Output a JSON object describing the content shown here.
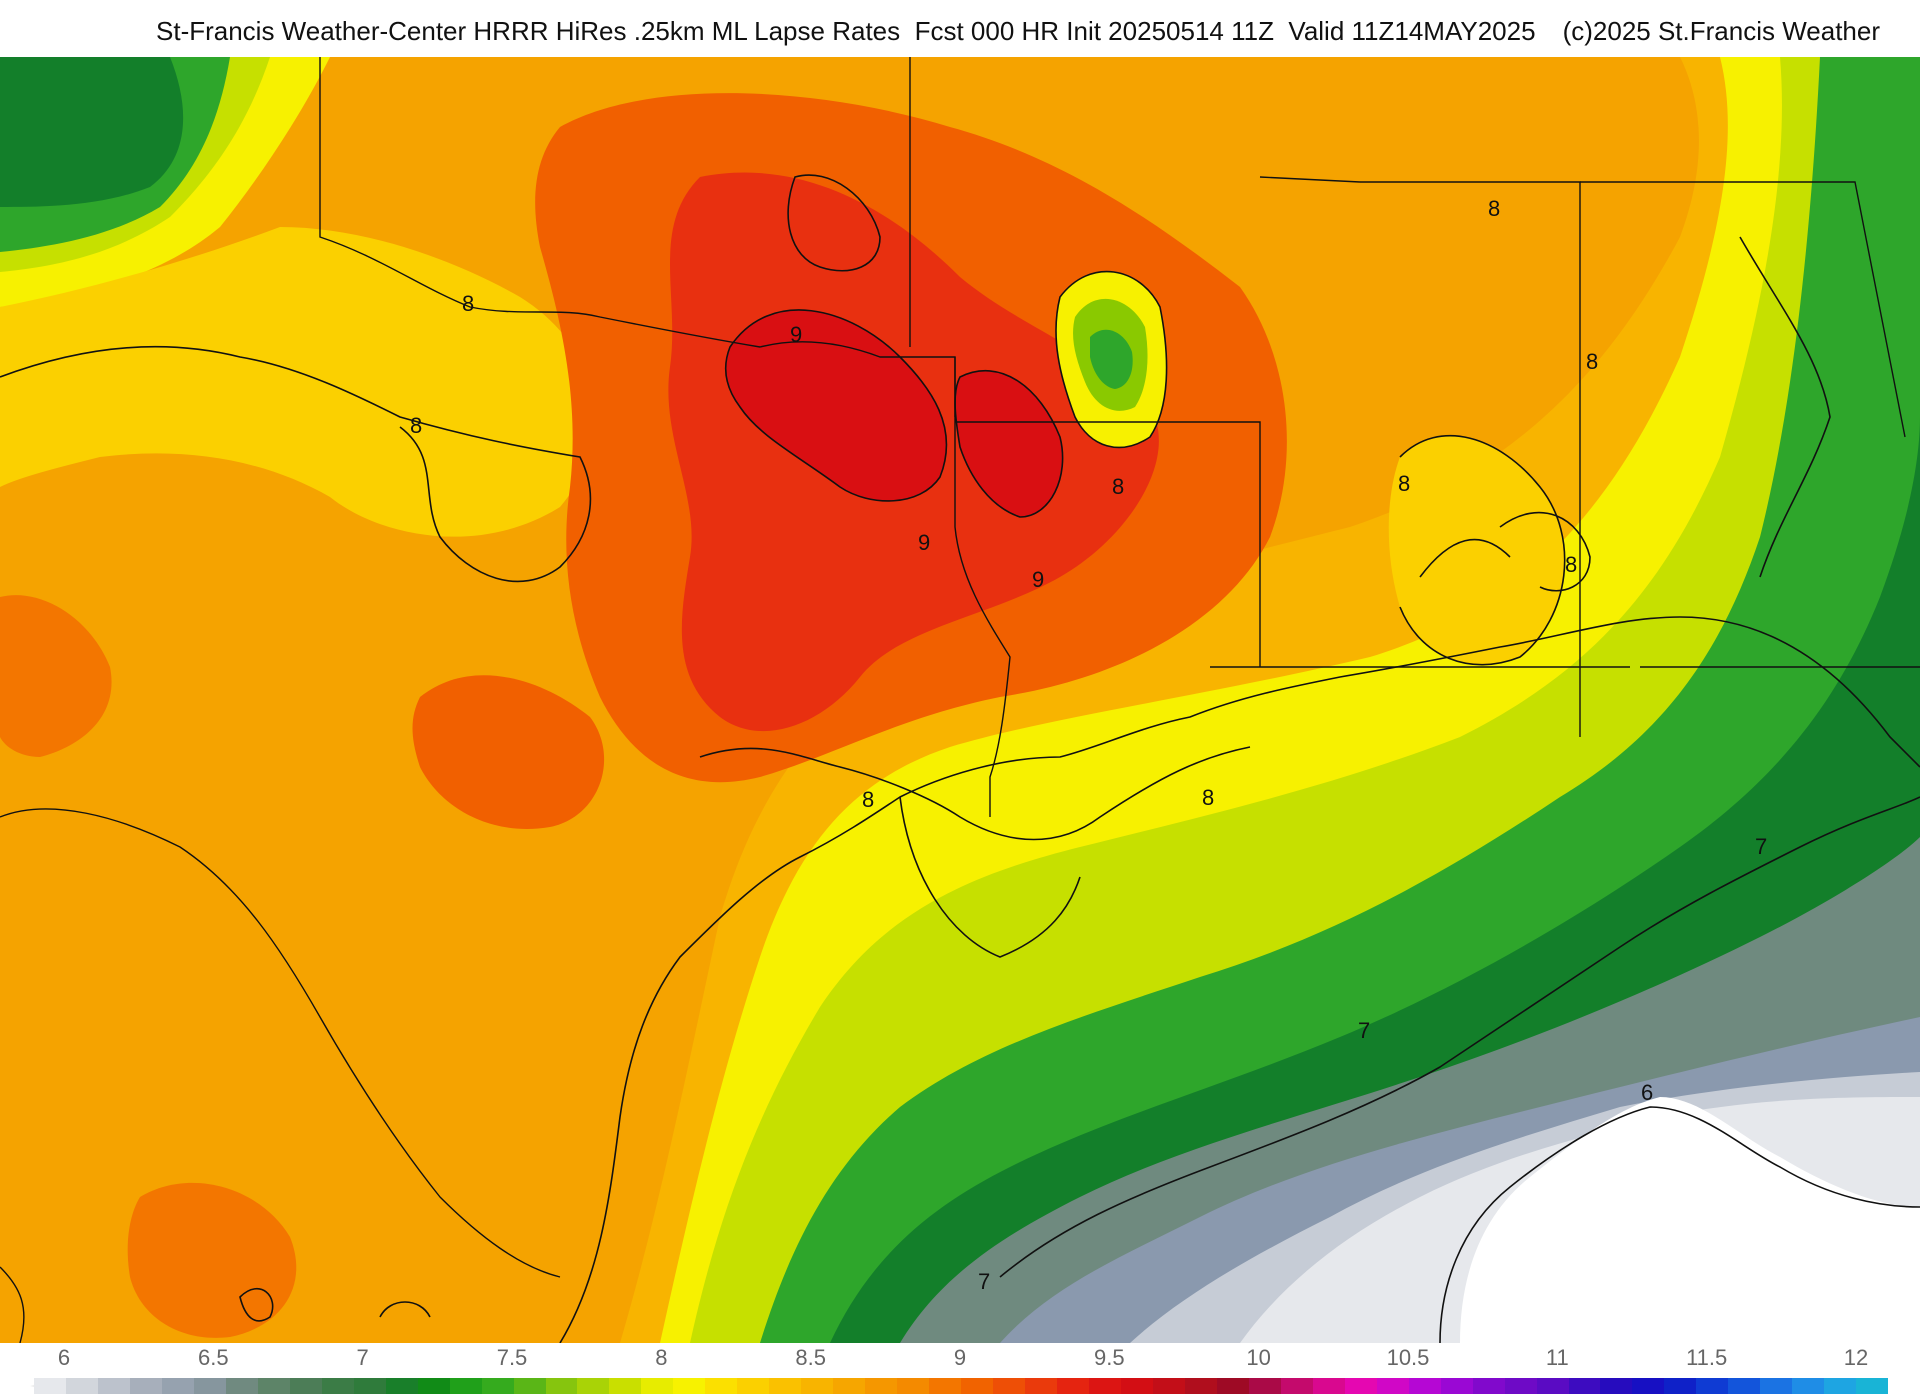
{
  "header": {
    "title": "St-Francis Weather-Center HRRR HiRes .25km ML Lapse Rates  Fcst 000 HR Init 20250514 11Z  Valid 11Z14MAY2025",
    "copyright": "(c)2025 St.Francis Weather"
  },
  "map": {
    "background_color": "#f5a300",
    "fill_colors": {
      "orange": "#f49200",
      "light_orange": "#f8b400",
      "yellow_orange": "#fbd000",
      "yellow": "#f7f100",
      "yellow_green": "#c6e000",
      "green_light": "#8ac900",
      "green": "#2ea62b",
      "green_dark": "#137f2a",
      "green_darker": "#3e7d52",
      "gray_green": "#6f8a7f",
      "gray_blue": "#8a99ae",
      "gray_light": "#c6ccd6",
      "gray_lighter": "#e6e8ec",
      "white": "#ffffff",
      "red_orange": "#f16000",
      "red": "#e83010",
      "deep_red": "#d90f12"
    },
    "contour_labels": [
      "8",
      "8",
      "9",
      "9",
      "9",
      "8",
      "8",
      "8",
      "8",
      "8",
      "8",
      "8",
      "7",
      "7",
      "7",
      "6"
    ]
  },
  "legend": {
    "ticks": [
      "6",
      "6.5",
      "7",
      "7.5",
      "8",
      "8.5",
      "9",
      "9.5",
      "10",
      "10.5",
      "11",
      "11.5",
      "12"
    ],
    "colors": [
      "#e6e8ec",
      "#d2d6dc",
      "#bcc2cc",
      "#a7afbb",
      "#96a2af",
      "#86969e",
      "#708a80",
      "#5d8468",
      "#4c7d57",
      "#3b7c46",
      "#2f7b3b",
      "#197f2a",
      "#118b17",
      "#20a01a",
      "#35ab1e",
      "#5ab617",
      "#86c50e",
      "#a9d306",
      "#c9df00",
      "#e7ec00",
      "#f7f200",
      "#fbe000",
      "#fbd000",
      "#fac100",
      "#f8b400",
      "#f6a600",
      "#f59700",
      "#f48a00",
      "#f37600",
      "#f16300",
      "#ee4f06",
      "#ea3a0c",
      "#e52410",
      "#dc1513",
      "#d30e14",
      "#c30e18",
      "#b00e1d",
      "#9e0a25",
      "#aa0a47",
      "#c40a6c",
      "#d9088f",
      "#e507b1",
      "#d007c6",
      "#b507d4",
      "#9a08d4",
      "#8109cc",
      "#6e0ac6",
      "#5a0bc3",
      "#3d0cc0",
      "#260cbe",
      "#1710c3",
      "#0f21c8",
      "#0f3bd3",
      "#1355db",
      "#1b73e3",
      "#1f8de6",
      "#1ea5e2",
      "#19b4d6"
    ]
  }
}
